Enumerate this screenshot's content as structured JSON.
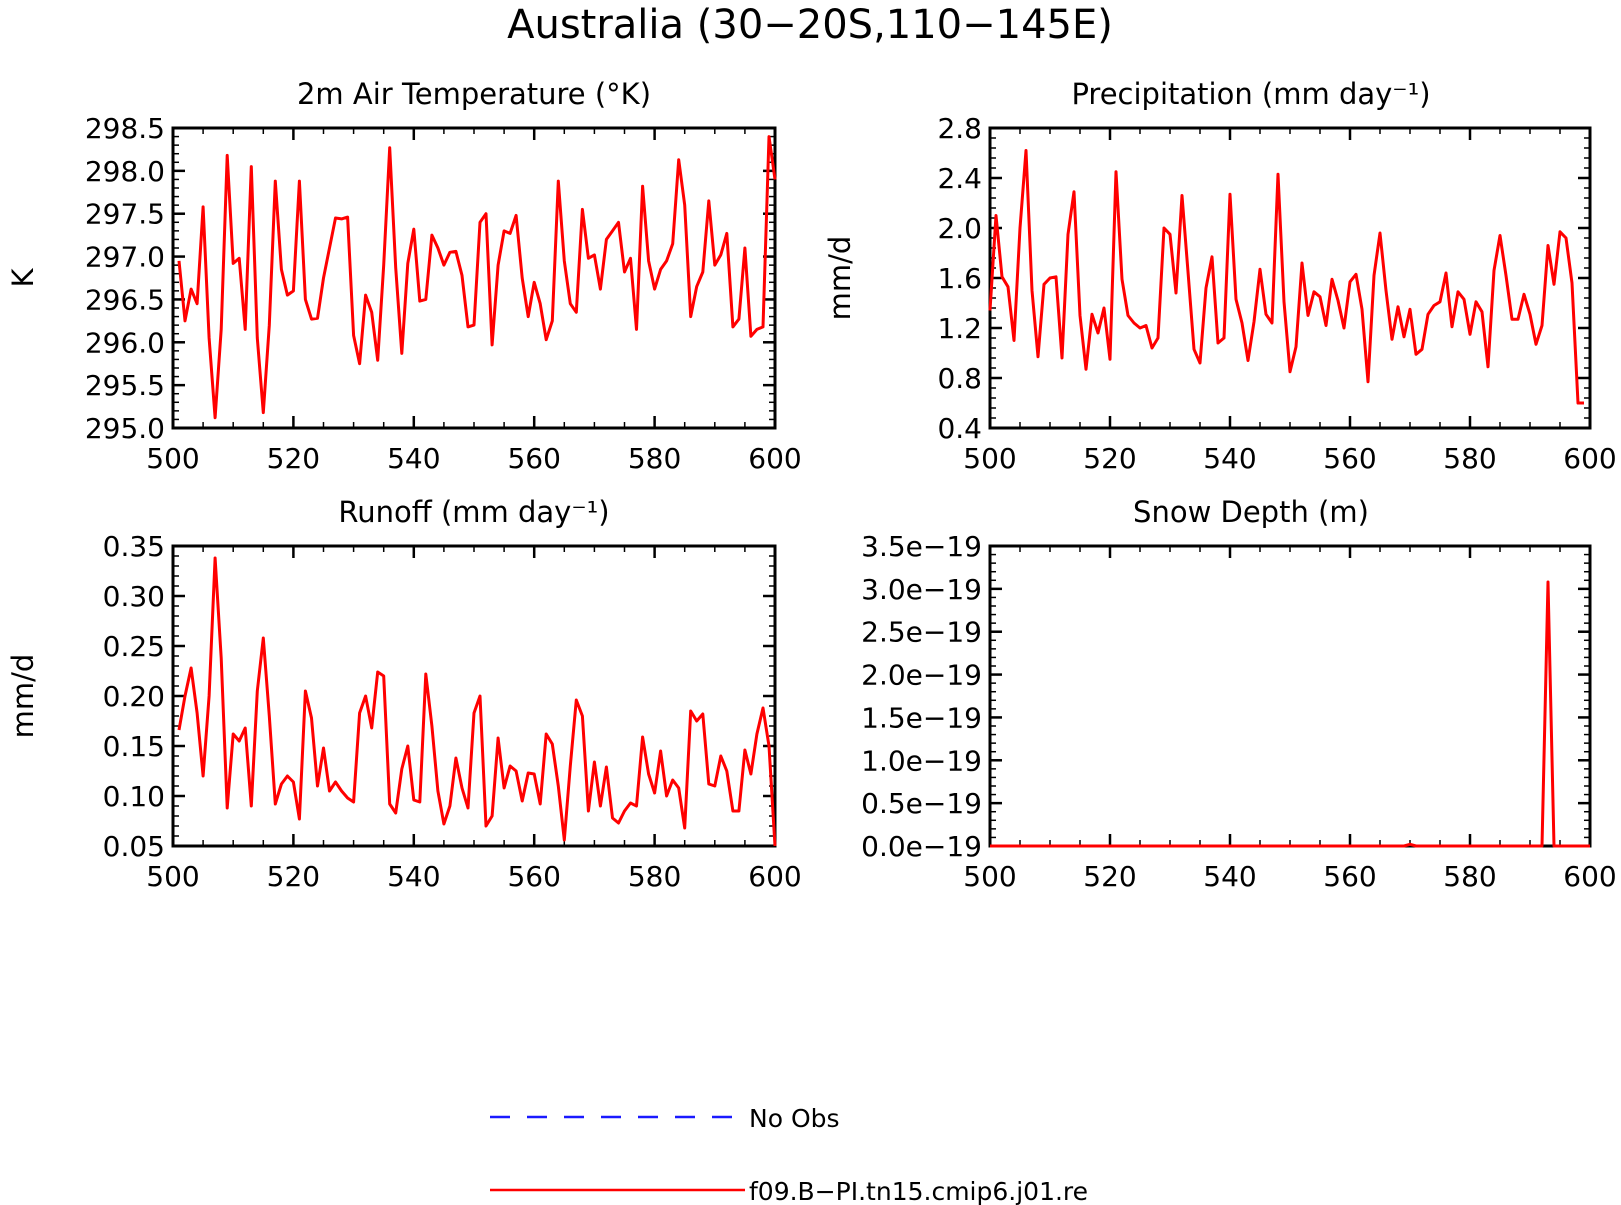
{
  "figure": {
    "title": "Australia (30−20S,110−145E)"
  },
  "legend": [
    {
      "label": "No Obs",
      "color": "#1a1aff",
      "dash": true
    },
    {
      "label": "f09.B−PI.tn15.cmip6.j01.re",
      "color": "#ff0000",
      "dash": false
    }
  ],
  "chart_data": [
    {
      "type": "line",
      "title": "2m Air Temperature (°K)",
      "ylabel": "K",
      "xlim": [
        500,
        600
      ],
      "ylim": [
        295.0,
        298.5
      ],
      "xticks": [
        "500",
        "520",
        "540",
        "560",
        "580",
        "600"
      ],
      "yticks": [
        "295.0",
        "295.5",
        "296.0",
        "296.5",
        "297.0",
        "297.5",
        "298.0",
        "298.5"
      ],
      "series": [
        {
          "color": "#ff0000",
          "x": [
            501,
            502,
            503,
            504,
            505,
            506,
            507,
            508,
            509,
            510,
            511,
            512,
            513,
            514,
            515,
            516,
            517,
            518,
            519,
            520,
            521,
            522,
            523,
            524,
            525,
            526,
            527,
            528,
            529,
            530,
            531,
            532,
            533,
            534,
            535,
            536,
            537,
            538,
            539,
            540,
            541,
            542,
            543,
            544,
            545,
            546,
            547,
            548,
            549,
            550,
            551,
            552,
            553,
            554,
            555,
            556,
            557,
            558,
            559,
            560,
            561,
            562,
            563,
            564,
            565,
            566,
            567,
            568,
            569,
            570,
            571,
            572,
            573,
            574,
            575,
            576,
            577,
            578,
            579,
            580,
            581,
            582,
            583,
            584,
            585,
            586,
            587,
            588,
            589,
            590,
            591,
            592,
            593,
            594,
            595,
            596,
            597,
            598,
            599,
            600
          ],
          "y": [
            296.95,
            296.25,
            296.62,
            296.45,
            297.58,
            296.05,
            295.12,
            296.15,
            298.18,
            296.92,
            296.98,
            296.15,
            298.05,
            296.05,
            295.18,
            296.2,
            297.88,
            296.85,
            296.55,
            296.6,
            297.88,
            296.5,
            296.27,
            296.28,
            296.75,
            297.1,
            297.45,
            297.44,
            297.46,
            296.08,
            295.75,
            296.55,
            296.35,
            295.79,
            296.9,
            298.27,
            296.87,
            295.87,
            296.92,
            297.32,
            296.48,
            296.5,
            297.25,
            297.1,
            296.9,
            297.05,
            297.06,
            296.78,
            296.18,
            296.2,
            297.4,
            297.5,
            295.97,
            296.9,
            297.3,
            297.27,
            297.48,
            296.75,
            296.3,
            296.7,
            296.45,
            296.03,
            296.25,
            297.88,
            296.95,
            296.45,
            296.35,
            297.55,
            296.98,
            297.02,
            296.62,
            297.2,
            297.3,
            297.4,
            296.82,
            296.98,
            296.15,
            297.82,
            296.95,
            296.62,
            296.85,
            296.95,
            297.15,
            298.13,
            297.6,
            296.3,
            296.65,
            296.82,
            297.65,
            296.9,
            297.02,
            297.27,
            296.18,
            296.27,
            297.1,
            296.07,
            296.15,
            296.18,
            298.4,
            297.9
          ]
        }
      ]
    },
    {
      "type": "line",
      "title": "Precipitation (mm day⁻¹)",
      "ylabel": "mm/d",
      "xlim": [
        500,
        600
      ],
      "ylim": [
        0.4,
        2.8
      ],
      "xticks": [
        "500",
        "520",
        "540",
        "560",
        "580",
        "600"
      ],
      "yticks": [
        "0.4",
        "0.8",
        "1.2",
        "1.6",
        "2.0",
        "2.4",
        "2.8"
      ],
      "series": [
        {
          "color": "#ff0000",
          "x": [
            500,
            501,
            502,
            503,
            504,
            505,
            506,
            507,
            508,
            509,
            510,
            511,
            512,
            513,
            514,
            515,
            516,
            517,
            518,
            519,
            520,
            521,
            522,
            523,
            524,
            525,
            526,
            527,
            528,
            529,
            530,
            531,
            532,
            533,
            534,
            535,
            536,
            537,
            538,
            539,
            540,
            541,
            542,
            543,
            544,
            545,
            546,
            547,
            548,
            549,
            550,
            551,
            552,
            553,
            554,
            555,
            556,
            557,
            558,
            559,
            560,
            561,
            562,
            563,
            564,
            565,
            566,
            567,
            568,
            569,
            570,
            571,
            572,
            573,
            574,
            575,
            576,
            577,
            578,
            579,
            580,
            581,
            582,
            583,
            584,
            585,
            586,
            587,
            588,
            589,
            590,
            591,
            592,
            593,
            594,
            595,
            596,
            597,
            598,
            599
          ],
          "y": [
            1.34,
            2.1,
            1.61,
            1.53,
            1.1,
            2.0,
            2.62,
            1.5,
            0.97,
            1.55,
            1.6,
            1.61,
            0.96,
            1.95,
            2.29,
            1.3,
            0.87,
            1.31,
            1.16,
            1.36,
            0.95,
            2.45,
            1.59,
            1.3,
            1.24,
            1.2,
            1.22,
            1.04,
            1.12,
            2.0,
            1.95,
            1.48,
            2.26,
            1.65,
            1.03,
            0.92,
            1.52,
            1.77,
            1.08,
            1.12,
            2.27,
            1.43,
            1.24,
            0.94,
            1.25,
            1.67,
            1.31,
            1.24,
            2.43,
            1.41,
            0.85,
            1.05,
            1.72,
            1.3,
            1.49,
            1.45,
            1.22,
            1.59,
            1.42,
            1.2,
            1.57,
            1.63,
            1.35,
            0.77,
            1.62,
            1.96,
            1.5,
            1.11,
            1.37,
            1.13,
            1.35,
            0.99,
            1.03,
            1.31,
            1.38,
            1.41,
            1.64,
            1.21,
            1.49,
            1.43,
            1.15,
            1.41,
            1.33,
            0.89,
            1.66,
            1.94,
            1.62,
            1.27,
            1.27,
            1.47,
            1.31,
            1.07,
            1.22,
            1.86,
            1.55,
            1.97,
            1.92,
            1.56,
            0.6,
            0.6
          ]
        }
      ]
    },
    {
      "type": "line",
      "title": "Runoff (mm day⁻¹)",
      "ylabel": "mm/d",
      "xlim": [
        500,
        600
      ],
      "ylim": [
        0.05,
        0.35
      ],
      "xticks": [
        "500",
        "520",
        "540",
        "560",
        "580",
        "600"
      ],
      "yticks": [
        "0.05",
        "0.10",
        "0.15",
        "0.20",
        "0.25",
        "0.30",
        "0.35"
      ],
      "series": [
        {
          "color": "#ff0000",
          "x": [
            501,
            502,
            503,
            504,
            505,
            506,
            507,
            508,
            509,
            510,
            511,
            512,
            513,
            514,
            515,
            516,
            517,
            518,
            519,
            520,
            521,
            522,
            523,
            524,
            525,
            526,
            527,
            528,
            529,
            530,
            531,
            532,
            533,
            534,
            535,
            536,
            537,
            538,
            539,
            540,
            541,
            542,
            543,
            544,
            545,
            546,
            547,
            548,
            549,
            550,
            551,
            552,
            553,
            554,
            555,
            556,
            557,
            558,
            559,
            560,
            561,
            562,
            563,
            564,
            565,
            566,
            567,
            568,
            569,
            570,
            571,
            572,
            573,
            574,
            575,
            576,
            577,
            578,
            579,
            580,
            581,
            582,
            583,
            584,
            585,
            586,
            587,
            588,
            589,
            590,
            591,
            592,
            593,
            594,
            595,
            596,
            597,
            598,
            599,
            600
          ],
          "y": [
            0.166,
            0.2,
            0.228,
            0.183,
            0.12,
            0.2,
            0.338,
            0.238,
            0.088,
            0.162,
            0.155,
            0.168,
            0.09,
            0.205,
            0.258,
            0.18,
            0.092,
            0.112,
            0.12,
            0.114,
            0.077,
            0.205,
            0.178,
            0.11,
            0.148,
            0.105,
            0.114,
            0.105,
            0.098,
            0.094,
            0.183,
            0.2,
            0.168,
            0.224,
            0.22,
            0.092,
            0.083,
            0.127,
            0.15,
            0.096,
            0.094,
            0.222,
            0.17,
            0.105,
            0.072,
            0.09,
            0.138,
            0.108,
            0.088,
            0.183,
            0.2,
            0.07,
            0.08,
            0.158,
            0.108,
            0.13,
            0.125,
            0.095,
            0.123,
            0.122,
            0.092,
            0.162,
            0.152,
            0.11,
            0.056,
            0.13,
            0.196,
            0.18,
            0.085,
            0.134,
            0.09,
            0.129,
            0.078,
            0.073,
            0.085,
            0.093,
            0.09,
            0.159,
            0.122,
            0.103,
            0.145,
            0.1,
            0.116,
            0.108,
            0.068,
            0.185,
            0.175,
            0.182,
            0.112,
            0.11,
            0.14,
            0.125,
            0.085,
            0.085,
            0.146,
            0.122,
            0.162,
            0.188,
            0.15,
            0.05
          ]
        }
      ]
    },
    {
      "type": "line",
      "title": "Snow Depth (m)",
      "ylabel": "",
      "xlim": [
        500,
        600
      ],
      "ylim": [
        0.0,
        3.5
      ],
      "yunit_note": "values in units of 1e-19 m",
      "xticks": [
        "500",
        "520",
        "540",
        "560",
        "580",
        "600"
      ],
      "yticks": [
        "0.0e−19",
        "0.5e−19",
        "1.0e−19",
        "1.5e−19",
        "2.0e−19",
        "2.5e−19",
        "3.0e−19",
        "3.5e−19"
      ],
      "series": [
        {
          "color": "#ff0000",
          "x": [
            500,
            569,
            570,
            571,
            592,
            593,
            594,
            600
          ],
          "y": [
            0,
            0,
            0.02,
            0,
            0,
            3.08,
            0,
            0
          ]
        }
      ]
    }
  ]
}
